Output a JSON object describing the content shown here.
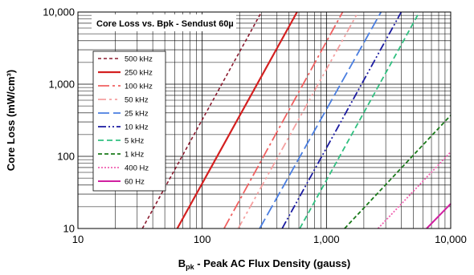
{
  "chart_data": {
    "type": "line",
    "title": "Core Loss vs. Bpk - Sendust  60µ",
    "xlabel": "B",
    "xlabel_sub": "pk",
    "xlabel_rest": " - Peak AC Flux Density (gauss)",
    "ylabel": "Core Loss (mW/cm³)",
    "x_scale": "log",
    "y_scale": "log",
    "xlim": [
      10,
      10000
    ],
    "ylim": [
      10,
      10000
    ],
    "x_ticks": [
      "10",
      "100",
      "1,000",
      "10,000"
    ],
    "y_ticks": [
      "10",
      "100",
      "1,000",
      "10,000"
    ],
    "grid": true,
    "legend_placement": "left",
    "series": [
      {
        "name": "500 kHz",
        "color": "#8b1a2e",
        "dash": "4,3",
        "width": 1.6,
        "x": [
          33,
          300
        ],
        "y": [
          10,
          10000
        ]
      },
      {
        "name": "250 kHz",
        "color": "#d42020",
        "dash": "",
        "width": 2.2,
        "x": [
          63,
          580
        ],
        "y": [
          10,
          10000
        ]
      },
      {
        "name": "100 kHz",
        "color": "#f06060",
        "dash": "14,4,3,4",
        "width": 1.8,
        "x": [
          150,
          1350
        ],
        "y": [
          10,
          10000
        ]
      },
      {
        "name": "50 kHz",
        "color": "#f5a0a0",
        "dash": "10,4,3,4,3,4",
        "width": 1.8,
        "x": [
          195,
          1800
        ],
        "y": [
          10,
          10000
        ]
      },
      {
        "name": "25 kHz",
        "color": "#4a7ee0",
        "dash": "14,5",
        "width": 1.8,
        "x": [
          290,
          2750
        ],
        "y": [
          10,
          10000
        ]
      },
      {
        "name": "10 kHz",
        "color": "#1a1aa0",
        "dash": "10,3,2,3,2,3",
        "width": 1.8,
        "x": [
          440,
          4000
        ],
        "y": [
          10,
          10000
        ]
      },
      {
        "name": "5 kHz",
        "color": "#30c080",
        "dash": "7,4",
        "width": 1.8,
        "x": [
          610,
          5600
        ],
        "y": [
          10,
          10000
        ]
      },
      {
        "name": "1 kHz",
        "color": "#1a7a1a",
        "dash": "5,3",
        "width": 1.8,
        "x": [
          1400,
          10000
        ],
        "y": [
          10,
          370
        ]
      },
      {
        "name": "400 Hz",
        "color": "#f060b0",
        "dash": "2,2",
        "width": 1.8,
        "x": [
          2600,
          10000
        ],
        "y": [
          10,
          115
        ]
      },
      {
        "name": "60 Hz",
        "color": "#d020a0",
        "dash": "",
        "width": 2.0,
        "x": [
          6400,
          10000
        ],
        "y": [
          10,
          22
        ]
      }
    ]
  }
}
